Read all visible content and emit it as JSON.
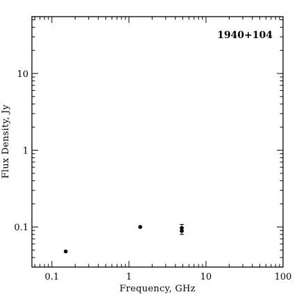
{
  "chart_data": {
    "type": "scatter",
    "title": "1940+104",
    "xlabel": "Frequency, GHz",
    "ylabel": "Flux Density, Jy",
    "x_scale": "log",
    "y_scale": "log",
    "xlim": [
      0.055,
      100
    ],
    "ylim": [
      0.03,
      55
    ],
    "x_ticks": [
      {
        "value": 0.1,
        "label": "0.1"
      },
      {
        "value": 1,
        "label": "1"
      },
      {
        "value": 10,
        "label": "10"
      },
      {
        "value": 100,
        "label": "100"
      }
    ],
    "y_ticks": [
      {
        "value": 0.1,
        "label": "0.1"
      },
      {
        "value": 1,
        "label": "1"
      },
      {
        "value": 10,
        "label": "10"
      }
    ],
    "grid": false,
    "legend": "none",
    "colors": {
      "marker": "#000000",
      "axes": "#000000",
      "background": "#ffffff"
    },
    "points": [
      {
        "x": 0.151,
        "y": 0.048
      },
      {
        "x": 1.4,
        "y": 0.1
      },
      {
        "x": 4.85,
        "y": 0.097,
        "err_low": 0.087,
        "err_high": 0.108
      },
      {
        "x": 4.85,
        "y": 0.089,
        "err_low": 0.08,
        "err_high": 0.098
      }
    ]
  }
}
